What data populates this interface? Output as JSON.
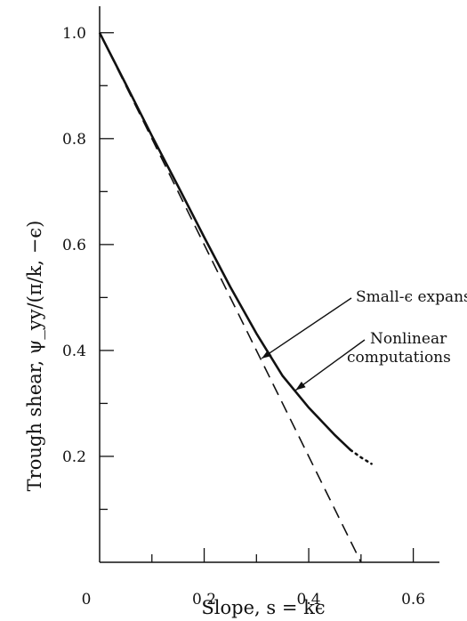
{
  "chart_data": {
    "type": "line",
    "title": "",
    "xlabel": "Slope, s = kϵ",
    "ylabel": "Trough shear, ψ_yy/(π/k, −ϵ)",
    "xlim": [
      0,
      0.65
    ],
    "ylim": [
      0,
      1.05
    ],
    "x_major_ticks": [
      0.2,
      0.4,
      0.6
    ],
    "x_minor_ticks": [
      0.1,
      0.3,
      0.5
    ],
    "y_major_ticks": [
      0.2,
      0.4,
      0.6,
      0.8,
      1.0
    ],
    "y_minor_ticks": [
      0.1,
      0.3,
      0.5,
      0.7,
      0.9
    ],
    "x_tick_labels": [
      "0.2",
      "0.4",
      "0.6"
    ],
    "y_tick_labels": [
      "0.2",
      "0.4",
      "0.6",
      "0.8",
      "1.0"
    ],
    "origin_label": "0",
    "grid": false,
    "legend": "none",
    "series": [
      {
        "style": "solid",
        "x": [
          0,
          0.05,
          0.1,
          0.15,
          0.2,
          0.25,
          0.3,
          0.35,
          0.4,
          0.45,
          0.48
        ],
        "y": [
          1.0,
          0.903,
          0.805,
          0.71,
          0.614,
          0.52,
          0.432,
          0.352,
          0.292,
          0.24,
          0.212
        ]
      },
      {
        "style": "dotted",
        "x": [
          0.48,
          0.5,
          0.52
        ],
        "y": [
          0.212,
          0.198,
          0.186
        ]
      },
      {
        "style": "dashed",
        "x": [
          0,
          0.5
        ],
        "y": [
          1.0,
          0.0
        ]
      }
    ],
    "annotations": [
      {
        "text": "Small-ϵ expansion",
        "arrow_to": [
          0.31,
          0.385
        ]
      },
      {
        "text": "Nonlinear",
        "arrow_to": [
          0.375,
          0.325
        ]
      },
      {
        "text": "computations"
      }
    ]
  }
}
